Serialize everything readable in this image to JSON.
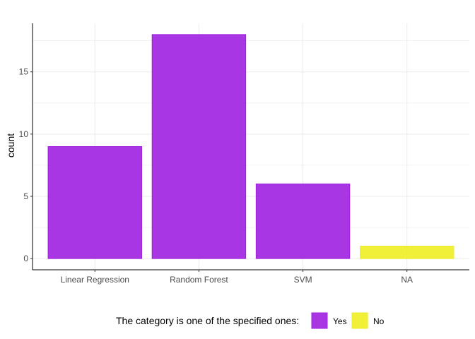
{
  "chart_data": {
    "type": "bar",
    "categories": [
      "Linear Regression",
      "Random Forest",
      "SVM",
      "NA"
    ],
    "values": [
      9,
      18,
      6,
      1
    ],
    "fill_groups": [
      "Yes",
      "Yes",
      "Yes",
      "No"
    ],
    "title": "",
    "xlabel": "",
    "ylabel": "count",
    "ylim": [
      -0.9,
      18.9
    ],
    "yticks": [
      0,
      5,
      10,
      15
    ],
    "grid": true,
    "legend": {
      "title": "The category is one of the specified ones:",
      "position": "bottom",
      "items": [
        {
          "label": "Yes",
          "color": "#a020e0"
        },
        {
          "label": "No",
          "color": "#eeee22"
        }
      ]
    },
    "colors": {
      "Yes": "#a020e0",
      "No": "#eeee22"
    }
  }
}
